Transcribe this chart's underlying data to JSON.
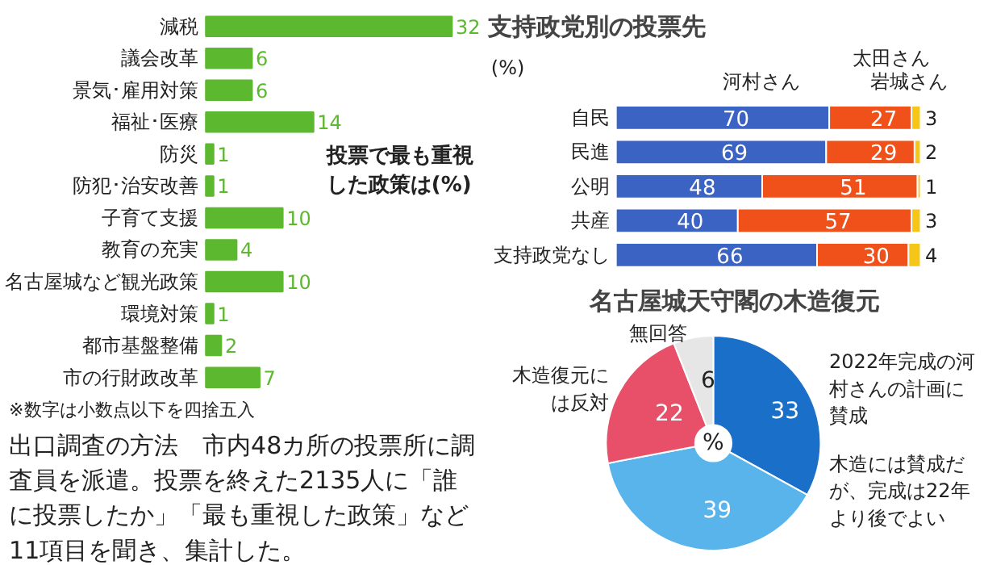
{
  "chart_data": [
    {
      "type": "bar",
      "orientation": "horizontal",
      "title": "投票で最も重視した政策は(%)",
      "categories": [
        "減税",
        "議会改革",
        "景気･雇用対策",
        "福祉･医療",
        "防災",
        "防犯･治安改善",
        "子育て支援",
        "教育の充実",
        "名古屋城など観光政策",
        "環境対策",
        "都市基盤整備",
        "市の行財政改革"
      ],
      "values": [
        32,
        6,
        6,
        14,
        1,
        1,
        10,
        4,
        10,
        1,
        2,
        7
      ],
      "color": "#5cb82e",
      "data_labels": true,
      "annotations": [
        "※数字は小数点以下を四捨五入",
        "出口調査の方法　市内48カ所の投票所に調査員を派遣。投票を終えた2135人に「誰に投票したか」「最も重視した政策」など11項目を聞き、集計した。"
      ]
    },
    {
      "type": "bar",
      "orientation": "horizontal",
      "stacked": true,
      "title": "支持政党別の投票先",
      "subtitle": "(%)",
      "categories": [
        "自民",
        "民進",
        "公明",
        "共産",
        "支持政党なし"
      ],
      "data_labels": true,
      "series": [
        {
          "name": "河村さん",
          "color": "#3a63c4",
          "values": [
            70,
            69,
            48,
            40,
            66
          ]
        },
        {
          "name": "岩城さん",
          "color": "#f0501a",
          "values": [
            27,
            29,
            51,
            57,
            30
          ]
        },
        {
          "name": "太田さん",
          "color": "#f5c518",
          "values": [
            3,
            2,
            1,
            3,
            4
          ]
        }
      ]
    },
    {
      "type": "pie",
      "title": "名古屋城天守閣の木造復元",
      "categories": [
        "2022年完成の河村さんの計画に賛成",
        "木造には賛成だが、完成は22年より後でよい",
        "木造復元には反対",
        "無回答"
      ],
      "values": [
        33,
        39,
        22,
        6
      ],
      "colors": [
        "#1a6fc9",
        "#5ab4ec",
        "#e8506a",
        "#e6e6e6"
      ],
      "data_labels": true,
      "annotations": [
        "%"
      ]
    }
  ]
}
